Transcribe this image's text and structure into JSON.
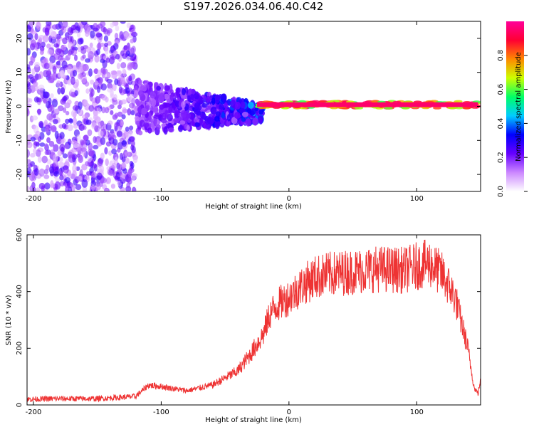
{
  "chart_data": [
    {
      "type": "heatmap",
      "title": "S197.2026.034.06.40.C42",
      "xlabel": "Height of straight line (km)",
      "ylabel": "Frequency (Hz)",
      "xlim": [
        -205,
        150
      ],
      "ylim": [
        -25,
        25
      ],
      "x_ticks": [
        -200,
        -100,
        0,
        100
      ],
      "y_ticks": [
        -20,
        -10,
        0,
        10,
        20
      ],
      "colorbar": {
        "label": "Normalized spectral amplitude",
        "range": [
          0.0,
          1.0
        ],
        "ticks": [
          "0.0",
          "0.2",
          "0.4",
          "0.6",
          "0.8"
        ],
        "colors": [
          "#ffffff",
          "#cc88ff",
          "#6600ff",
          "#0000ff",
          "#00ccff",
          "#00ff66",
          "#ccff00",
          "#ff8800",
          "#ff0033",
          "#ff0099"
        ]
      },
      "description_regions": [
        {
          "x_from": -205,
          "x_to": -120,
          "freq_spread": 25,
          "amplitude": 0.15
        },
        {
          "x_from": -120,
          "x_to": -20,
          "freq_spread": 8,
          "amplitude": 0.3
        },
        {
          "x_from": -25,
          "x_to": 148,
          "freq_center": 0.5,
          "freq_spread": 1,
          "amplitude": 0.95
        }
      ]
    },
    {
      "type": "line",
      "xlabel": "Height of straight line (km)",
      "ylabel": "SNR (10 * v/v)",
      "xlim": [
        -205,
        150
      ],
      "ylim": [
        0,
        600
      ],
      "x_ticks": [
        -200,
        -100,
        0,
        100
      ],
      "y_ticks": [
        0,
        200,
        400,
        600
      ],
      "series": [
        {
          "name": "SNR",
          "color": "#ee3333",
          "x": [
            -205,
            -180,
            -150,
            -120,
            -110,
            -100,
            -80,
            -60,
            -40,
            -30,
            -20,
            -15,
            -10,
            0,
            10,
            20,
            30,
            50,
            70,
            90,
            100,
            110,
            120,
            130,
            140,
            145,
            148,
            150
          ],
          "y": [
            20,
            22,
            22,
            30,
            70,
            65,
            50,
            70,
            120,
            180,
            250,
            320,
            350,
            380,
            420,
            450,
            460,
            470,
            480,
            475,
            490,
            500,
            460,
            380,
            200,
            60,
            40,
            90
          ]
        }
      ]
    }
  ]
}
